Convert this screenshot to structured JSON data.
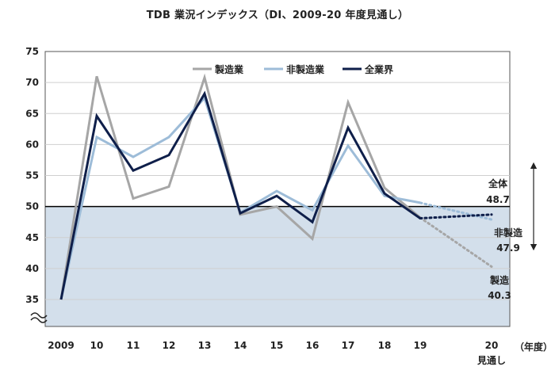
{
  "chart_data": {
    "type": "line",
    "title": "TDB 業況インデックス（DI、2009-20 年度見通し）",
    "xlabel": "（年度）",
    "ylabel": "",
    "ylim": [
      35,
      75
    ],
    "y_ticks": [
      35,
      40,
      45,
      50,
      55,
      60,
      65,
      70,
      75
    ],
    "categories": [
      "2009",
      "10",
      "11",
      "12",
      "13",
      "14",
      "15",
      "16",
      "17",
      "18",
      "19",
      "20"
    ],
    "forecast_label": "見通し",
    "shaded_below": 50,
    "legend_position": "top",
    "series": [
      {
        "name": "製造業",
        "color": "#a6a6a6",
        "width": 3,
        "values": [
          35.0,
          71.0,
          51.3,
          53.2,
          70.8,
          48.7,
          50.0,
          44.8,
          66.8,
          53.0,
          48.2,
          null
        ],
        "forecast": 40.3
      },
      {
        "name": "非製造業",
        "color": "#9dbcd8",
        "width": 3,
        "values": [
          35.0,
          61.2,
          58.0,
          61.2,
          67.5,
          49.0,
          52.5,
          49.4,
          59.8,
          51.7,
          50.6,
          null
        ],
        "forecast": 47.9
      },
      {
        "name": "全業界",
        "color": "#0f1f4a",
        "width": 3,
        "values": [
          35.0,
          64.6,
          55.8,
          58.3,
          68.2,
          48.9,
          51.7,
          47.5,
          62.7,
          52.1,
          48.1,
          null
        ],
        "forecast": 48.7
      }
    ],
    "annotations": [
      {
        "label": "全体",
        "value": "48.7"
      },
      {
        "label": "非製造",
        "value": "47.9"
      },
      {
        "label": "製造",
        "value": "40.3"
      }
    ]
  }
}
